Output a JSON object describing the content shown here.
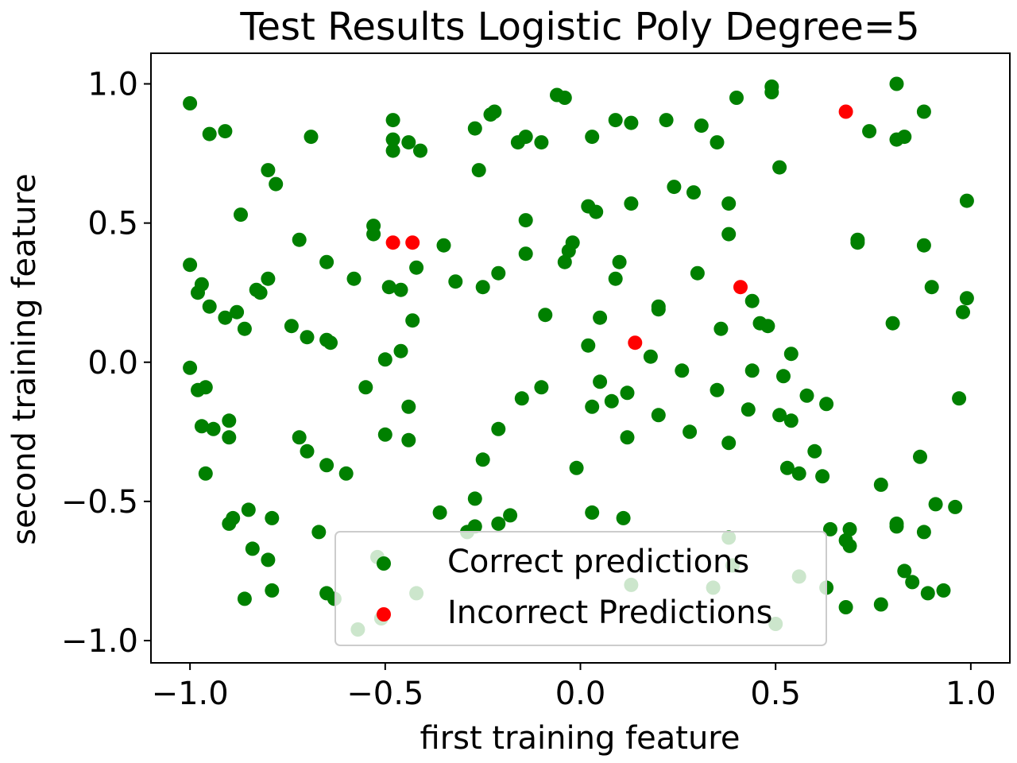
{
  "chart_data": {
    "type": "scatter",
    "title": "Test Results Logistic Poly Degree=5",
    "xlabel": "first training feature",
    "ylabel": "second training feature",
    "xlim": [
      -1.1,
      1.1
    ],
    "ylim": [
      -1.08,
      1.11
    ],
    "xticks": [
      -1.0,
      -0.5,
      0.0,
      0.5,
      1.0
    ],
    "yticks": [
      -1.0,
      -0.5,
      0.0,
      0.5,
      1.0
    ],
    "xtick_labels": [
      "−1.0",
      "−0.5",
      "0.0",
      "0.5",
      "1.0"
    ],
    "ytick_labels": [
      "−1.0",
      "−0.5",
      "0.0",
      "0.5",
      "1.0"
    ],
    "grid": false,
    "legend_position": "lower center",
    "series": [
      {
        "name": "Correct predictions",
        "color": "#008000",
        "points": [
          [
            -1.0,
            0.93
          ],
          [
            -0.95,
            0.82
          ],
          [
            -0.91,
            0.83
          ],
          [
            -0.69,
            0.81
          ],
          [
            -0.48,
            0.87
          ],
          [
            -0.48,
            0.8
          ],
          [
            -0.48,
            0.76
          ],
          [
            -0.44,
            0.79
          ],
          [
            -0.41,
            0.76
          ],
          [
            -0.27,
            0.84
          ],
          [
            -0.23,
            0.89
          ],
          [
            -0.22,
            0.9
          ],
          [
            -0.26,
            0.69
          ],
          [
            -0.16,
            0.79
          ],
          [
            -0.14,
            0.81
          ],
          [
            -0.1,
            0.79
          ],
          [
            -0.06,
            0.96
          ],
          [
            -0.04,
            0.95
          ],
          [
            0.03,
            0.81
          ],
          [
            0.09,
            0.87
          ],
          [
            0.13,
            0.86
          ],
          [
            0.22,
            0.87
          ],
          [
            0.31,
            0.85
          ],
          [
            0.35,
            0.79
          ],
          [
            0.4,
            0.95
          ],
          [
            0.49,
            0.99
          ],
          [
            0.49,
            0.97
          ],
          [
            0.51,
            0.7
          ],
          [
            0.74,
            0.83
          ],
          [
            0.81,
            1.0
          ],
          [
            0.81,
            0.8
          ],
          [
            0.83,
            0.81
          ],
          [
            0.88,
            0.9
          ],
          [
            -0.8,
            0.69
          ],
          [
            -0.78,
            0.64
          ],
          [
            -0.87,
            0.53
          ],
          [
            -0.53,
            0.49
          ],
          [
            -0.53,
            0.46
          ],
          [
            -0.35,
            0.42
          ],
          [
            -0.72,
            0.44
          ],
          [
            -0.65,
            0.36
          ],
          [
            -0.42,
            0.34
          ],
          [
            -1.0,
            0.35
          ],
          [
            -0.97,
            0.28
          ],
          [
            -0.98,
            0.25
          ],
          [
            -0.8,
            0.3
          ],
          [
            -0.83,
            0.26
          ],
          [
            -0.82,
            0.25
          ],
          [
            -0.58,
            0.3
          ],
          [
            -0.49,
            0.27
          ],
          [
            -0.46,
            0.26
          ],
          [
            -0.32,
            0.29
          ],
          [
            -0.25,
            0.27
          ],
          [
            -0.21,
            0.32
          ],
          [
            -0.14,
            0.51
          ],
          [
            -0.14,
            0.39
          ],
          [
            0.02,
            0.56
          ],
          [
            0.04,
            0.54
          ],
          [
            0.13,
            0.57
          ],
          [
            -0.02,
            0.43
          ],
          [
            -0.03,
            0.4
          ],
          [
            -0.04,
            0.36
          ],
          [
            0.1,
            0.36
          ],
          [
            0.09,
            0.3
          ],
          [
            0.24,
            0.63
          ],
          [
            0.29,
            0.61
          ],
          [
            0.38,
            0.57
          ],
          [
            0.38,
            0.46
          ],
          [
            0.3,
            0.32
          ],
          [
            0.71,
            0.44
          ],
          [
            0.71,
            0.43
          ],
          [
            0.88,
            0.42
          ],
          [
            0.99,
            0.58
          ],
          [
            0.9,
            0.27
          ],
          [
            0.99,
            0.23
          ],
          [
            0.98,
            0.18
          ],
          [
            0.8,
            0.14
          ],
          [
            -0.95,
            0.2
          ],
          [
            -0.88,
            0.18
          ],
          [
            -0.91,
            0.16
          ],
          [
            -0.86,
            0.12
          ],
          [
            -0.74,
            0.13
          ],
          [
            -0.7,
            0.09
          ],
          [
            -0.65,
            0.08
          ],
          [
            -0.64,
            0.07
          ],
          [
            -0.43,
            0.15
          ],
          [
            -0.09,
            0.17
          ],
          [
            0.05,
            0.16
          ],
          [
            0.2,
            0.2
          ],
          [
            0.2,
            0.19
          ],
          [
            0.36,
            0.12
          ],
          [
            0.44,
            0.22
          ],
          [
            0.46,
            0.14
          ],
          [
            0.48,
            0.13
          ],
          [
            0.02,
            0.06
          ],
          [
            -0.46,
            0.04
          ],
          [
            -0.5,
            0.01
          ],
          [
            0.18,
            0.02
          ],
          [
            0.54,
            0.03
          ],
          [
            -1.0,
            -0.02
          ],
          [
            -0.98,
            -0.1
          ],
          [
            -0.96,
            -0.09
          ],
          [
            -0.55,
            -0.09
          ],
          [
            -0.15,
            -0.13
          ],
          [
            -0.1,
            -0.09
          ],
          [
            0.05,
            -0.07
          ],
          [
            0.03,
            -0.16
          ],
          [
            0.08,
            -0.14
          ],
          [
            0.12,
            -0.11
          ],
          [
            0.26,
            -0.03
          ],
          [
            0.35,
            -0.1
          ],
          [
            0.44,
            -0.03
          ],
          [
            0.52,
            -0.05
          ],
          [
            0.43,
            -0.17
          ],
          [
            0.2,
            -0.19
          ],
          [
            0.51,
            -0.19
          ],
          [
            0.54,
            -0.21
          ],
          [
            0.58,
            -0.12
          ],
          [
            0.63,
            -0.15
          ],
          [
            0.97,
            -0.13
          ],
          [
            -0.97,
            -0.23
          ],
          [
            -0.94,
            -0.24
          ],
          [
            -0.9,
            -0.21
          ],
          [
            -0.9,
            -0.27
          ],
          [
            -0.72,
            -0.27
          ],
          [
            -0.7,
            -0.32
          ],
          [
            -0.65,
            -0.37
          ],
          [
            -0.6,
            -0.4
          ],
          [
            -0.5,
            -0.26
          ],
          [
            -0.44,
            -0.16
          ],
          [
            -0.44,
            -0.28
          ],
          [
            -0.21,
            -0.24
          ],
          [
            -0.25,
            -0.35
          ],
          [
            -0.01,
            -0.38
          ],
          [
            0.12,
            -0.27
          ],
          [
            0.28,
            -0.25
          ],
          [
            0.38,
            -0.29
          ],
          [
            0.53,
            -0.38
          ],
          [
            0.56,
            -0.4
          ],
          [
            0.6,
            -0.32
          ],
          [
            0.62,
            -0.41
          ],
          [
            0.87,
            -0.34
          ],
          [
            -0.96,
            -0.4
          ],
          [
            -0.9,
            -0.58
          ],
          [
            -0.89,
            -0.56
          ],
          [
            -0.85,
            -0.53
          ],
          [
            -0.79,
            -0.56
          ],
          [
            -0.67,
            -0.61
          ],
          [
            -0.36,
            -0.54
          ],
          [
            -0.27,
            -0.49
          ],
          [
            -0.27,
            -0.59
          ],
          [
            -0.29,
            -0.61
          ],
          [
            -0.21,
            -0.58
          ],
          [
            -0.18,
            -0.55
          ],
          [
            0.03,
            -0.54
          ],
          [
            0.11,
            -0.56
          ],
          [
            0.64,
            -0.6
          ],
          [
            0.68,
            -0.64
          ],
          [
            0.69,
            -0.6
          ],
          [
            0.69,
            -0.66
          ],
          [
            0.77,
            -0.44
          ],
          [
            0.81,
            -0.58
          ],
          [
            0.81,
            -0.59
          ],
          [
            0.88,
            -0.61
          ],
          [
            0.91,
            -0.51
          ],
          [
            0.96,
            -0.52
          ],
          [
            -0.84,
            -0.67
          ],
          [
            -0.8,
            -0.71
          ],
          [
            -0.79,
            -0.82
          ],
          [
            -0.86,
            -0.85
          ],
          [
            -0.65,
            -0.83
          ],
          [
            -0.63,
            -0.85
          ],
          [
            -0.57,
            -0.96
          ],
          [
            -0.52,
            -0.7
          ],
          [
            -0.51,
            -0.92
          ],
          [
            -0.42,
            -0.83
          ],
          [
            0.13,
            -0.8
          ],
          [
            0.34,
            -0.81
          ],
          [
            0.38,
            -0.63
          ],
          [
            0.39,
            -0.73
          ],
          [
            0.56,
            -0.77
          ],
          [
            0.5,
            -0.94
          ],
          [
            0.63,
            -0.81
          ],
          [
            0.68,
            -0.88
          ],
          [
            0.77,
            -0.87
          ],
          [
            0.83,
            -0.75
          ],
          [
            0.85,
            -0.79
          ],
          [
            0.89,
            -0.83
          ],
          [
            0.93,
            -0.82
          ]
        ]
      },
      {
        "name": "Incorrect Predictions",
        "color": "#ff0000",
        "points": [
          [
            0.68,
            0.9
          ],
          [
            -0.48,
            0.43
          ],
          [
            -0.43,
            0.43
          ],
          [
            0.41,
            0.27
          ],
          [
            0.14,
            0.07
          ]
        ]
      }
    ]
  }
}
